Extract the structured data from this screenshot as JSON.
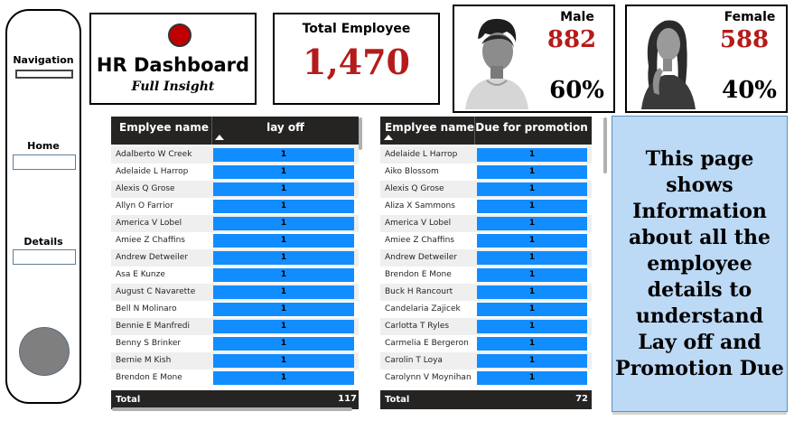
{
  "navigation": {
    "label_navigation": "Navigation",
    "label_home": "Home",
    "label_details": "Details"
  },
  "title_card": {
    "title": "HR Dashboard",
    "subtitle": "Full Insight"
  },
  "total_card": {
    "label": "Total Employee",
    "value": "1,470"
  },
  "male_card": {
    "label": "Male",
    "count": "882",
    "percent": "60%"
  },
  "female_card": {
    "label": "Female",
    "count": "588",
    "percent": "40%"
  },
  "layoff_table": {
    "col_name": "Emplyee name",
    "col_value": "lay off",
    "rows": [
      {
        "name": "Adalberto W Creek",
        "value": "1"
      },
      {
        "name": "Adelaide L Harrop",
        "value": "1"
      },
      {
        "name": "Alexis Q Grose",
        "value": "1"
      },
      {
        "name": "Allyn O Farrior",
        "value": "1"
      },
      {
        "name": "America V Lobel",
        "value": "1"
      },
      {
        "name": "Amiee Z Chaffins",
        "value": "1"
      },
      {
        "name": "Andrew Detweiler",
        "value": "1"
      },
      {
        "name": "Asa E Kunze",
        "value": "1"
      },
      {
        "name": "August C Navarette",
        "value": "1"
      },
      {
        "name": "Bell N Molinaro",
        "value": "1"
      },
      {
        "name": "Bennie E Manfredi",
        "value": "1"
      },
      {
        "name": "Benny S Brinker",
        "value": "1"
      },
      {
        "name": "Bernie M Kish",
        "value": "1"
      },
      {
        "name": "Brendon E Mone",
        "value": "1"
      }
    ],
    "total_label": "Total",
    "total_value": "117"
  },
  "promotion_table": {
    "col_name": "Emplyee name",
    "col_value": "Due for promotion",
    "rows": [
      {
        "name": "Adelaide L Harrop",
        "value": "1"
      },
      {
        "name": "Aiko Blossom",
        "value": "1"
      },
      {
        "name": "Alexis Q Grose",
        "value": "1"
      },
      {
        "name": "Aliza X Sammons",
        "value": "1"
      },
      {
        "name": "America V Lobel",
        "value": "1"
      },
      {
        "name": "Amiee Z Chaffins",
        "value": "1"
      },
      {
        "name": "Andrew Detweiler",
        "value": "1"
      },
      {
        "name": "Brendon E Mone",
        "value": "1"
      },
      {
        "name": "Buck H Rancourt",
        "value": "1"
      },
      {
        "name": "Candelaria Zajicek",
        "value": "1"
      },
      {
        "name": "Carlotta T Ryles",
        "value": "1"
      },
      {
        "name": "Carmelia E Bergeron",
        "value": "1"
      },
      {
        "name": "Carolin T Loya",
        "value": "1"
      },
      {
        "name": "Carolynn V Moynihan",
        "value": "1"
      }
    ],
    "total_label": "Total",
    "total_value": "72"
  },
  "info_card": {
    "text": "This page shows Information about all the employee details to understand Lay off and Promotion Due"
  },
  "colors": {
    "accent_red": "#b51b1b",
    "bar_blue": "#118dff",
    "header_dark": "#252423",
    "info_bg": "#bcd9f5"
  }
}
